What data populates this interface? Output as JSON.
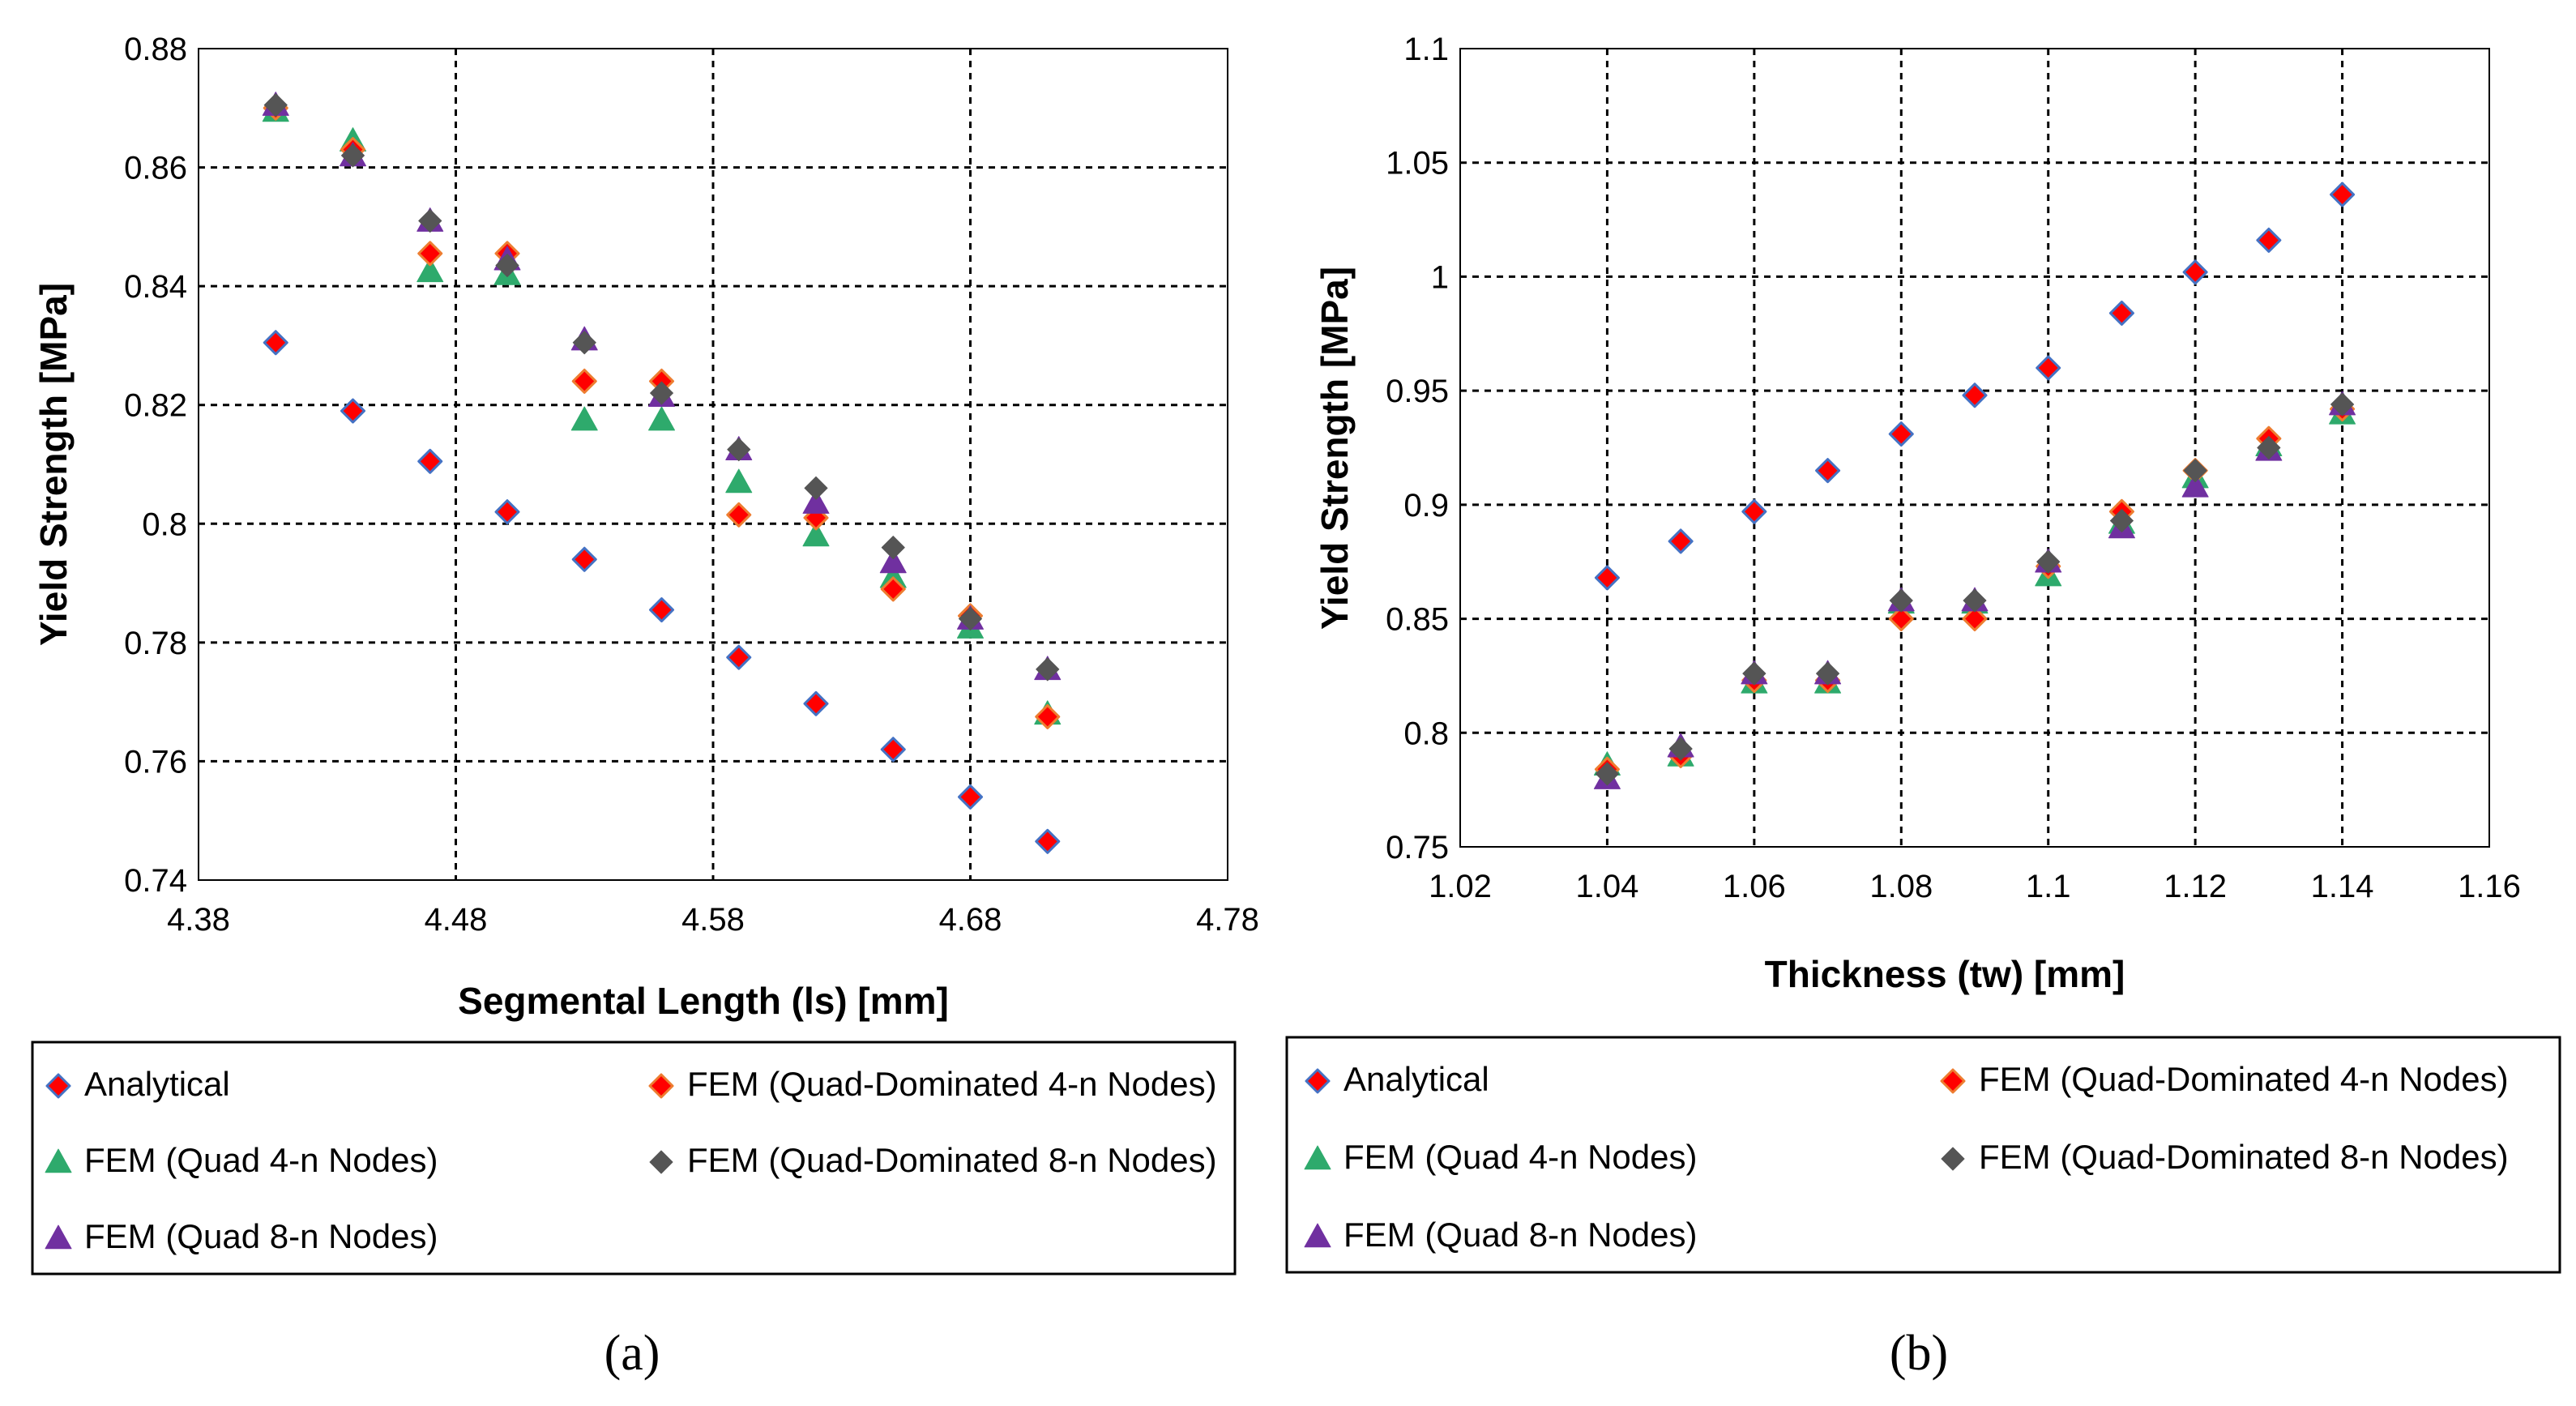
{
  "colors": {
    "analytical_fill": "#ff0000",
    "analytical_edge": "#4472c4",
    "fem_qd4_fill": "#ff0000",
    "fem_qd4_edge": "#ed7d31",
    "fem_q4": "#2eaa6c",
    "fem_qd8": "#555555",
    "fem_q8": "#7030a0"
  },
  "icons": {
    "analytical": "diamond-marker-icon",
    "fem_qd4": "diamond-marker-icon",
    "fem_q4": "triangle-marker-icon",
    "fem_qd8": "diamond-marker-icon",
    "fem_q8": "triangle-marker-icon"
  },
  "chart_data": [
    {
      "type": "scatter",
      "panel_label": "(a)",
      "xlabel": "Segmental Length (ls) [mm]",
      "ylabel": "Yield Strength [MPa]",
      "xlim": [
        4.38,
        4.78
      ],
      "ylim": [
        0.74,
        0.88
      ],
      "x_ticks": [
        4.38,
        4.48,
        4.58,
        4.68,
        4.78
      ],
      "x_tick_labels": [
        "4.38",
        "4.48",
        "4.58",
        "4.68",
        "4.78"
      ],
      "y_ticks": [
        0.74,
        0.76,
        0.78,
        0.8,
        0.82,
        0.84,
        0.86,
        0.88
      ],
      "y_tick_labels": [
        "0.74",
        "0.76",
        "0.78",
        "0.8",
        "0.82",
        "0.84",
        "0.86",
        "0.88"
      ],
      "grid": true,
      "legend_position": "bottom",
      "x": [
        4.41,
        4.44,
        4.47,
        4.5,
        4.53,
        4.56,
        4.59,
        4.62,
        4.65,
        4.68,
        4.71
      ],
      "series": [
        {
          "name": "Analytical",
          "marker": "diamond",
          "style": "analytical",
          "values": [
            0.8305,
            0.819,
            0.8105,
            0.802,
            0.794,
            0.7855,
            0.7775,
            0.7697,
            0.762,
            0.754,
            0.7465
          ]
        },
        {
          "name": "FEM (Quad-Dominated 4-n Nodes)",
          "marker": "diamond",
          "style": "fem_qd4",
          "values": [
            0.87,
            0.863,
            0.8455,
            0.8455,
            0.824,
            0.824,
            0.8015,
            0.801,
            0.789,
            0.7845,
            0.7675
          ]
        },
        {
          "name": "FEM (Quad 4-n Nodes)",
          "marker": "triangle",
          "style": "fem_q4",
          "values": [
            0.8695,
            0.8645,
            0.8425,
            0.842,
            0.8175,
            0.8175,
            0.807,
            0.798,
            0.791,
            0.7825,
            0.768
          ]
        },
        {
          "name": "FEM (Quad-Dominated 8-n Nodes)",
          "marker": "diamond",
          "style": "fem_qd8",
          "values": [
            0.8705,
            0.862,
            0.851,
            0.8435,
            0.8305,
            0.822,
            0.8125,
            0.806,
            0.796,
            0.784,
            0.7755
          ]
        },
        {
          "name": "FEM (Quad 8-n Nodes)",
          "marker": "triangle",
          "style": "fem_q8",
          "values": [
            0.8705,
            0.862,
            0.851,
            0.8445,
            0.831,
            0.8215,
            0.8125,
            0.8035,
            0.7935,
            0.784,
            0.7755
          ]
        }
      ]
    },
    {
      "type": "scatter",
      "panel_label": "(b)",
      "xlabel": "Thickness (tw) [mm]",
      "ylabel": "Yield Strength [MPa]",
      "xlim": [
        1.02,
        1.16
      ],
      "ylim": [
        0.75,
        1.1
      ],
      "x_ticks": [
        1.02,
        1.04,
        1.06,
        1.08,
        1.1,
        1.12,
        1.14,
        1.16
      ],
      "x_tick_labels": [
        "1.02",
        "1.04",
        "1.06",
        "1.08",
        "1.1",
        "1.12",
        "1.14",
        "1.16"
      ],
      "y_ticks": [
        0.75,
        0.8,
        0.85,
        0.9,
        0.95,
        1.0,
        1.05,
        1.1
      ],
      "y_tick_labels": [
        "0.75",
        "0.8",
        "0.85",
        "0.9",
        "0.95",
        "1",
        "1.05",
        "1.1"
      ],
      "grid": true,
      "legend_position": "bottom",
      "x": [
        1.04,
        1.05,
        1.06,
        1.07,
        1.08,
        1.09,
        1.1,
        1.11,
        1.12,
        1.13,
        1.14
      ],
      "series": [
        {
          "name": "Analytical",
          "marker": "diamond",
          "style": "analytical",
          "values": [
            0.868,
            0.884,
            0.897,
            0.915,
            0.931,
            0.948,
            0.96,
            0.984,
            1.002,
            1.016,
            1.036
          ]
        },
        {
          "name": "FEM (Quad-Dominated 4-n Nodes)",
          "marker": "diamond",
          "style": "fem_qd4",
          "values": [
            0.784,
            0.79,
            0.823,
            0.823,
            0.85,
            0.85,
            0.873,
            0.897,
            0.915,
            0.929,
            0.942
          ]
        },
        {
          "name": "FEM (Quad 4-n Nodes)",
          "marker": "triangle",
          "style": "fem_q4",
          "values": [
            0.786,
            0.79,
            0.822,
            0.822,
            0.857,
            0.857,
            0.869,
            0.892,
            0.912,
            0.926,
            0.94
          ]
        },
        {
          "name": "FEM (Quad-Dominated 8-n Nodes)",
          "marker": "diamond",
          "style": "fem_qd8",
          "values": [
            0.782,
            0.793,
            0.826,
            0.826,
            0.858,
            0.858,
            0.875,
            0.893,
            0.915,
            0.925,
            0.944
          ]
        },
        {
          "name": "FEM (Quad 8-n Nodes)",
          "marker": "triangle",
          "style": "fem_q8",
          "values": [
            0.78,
            0.794,
            0.826,
            0.826,
            0.858,
            0.858,
            0.875,
            0.89,
            0.908,
            0.924,
            0.944
          ]
        }
      ]
    }
  ]
}
